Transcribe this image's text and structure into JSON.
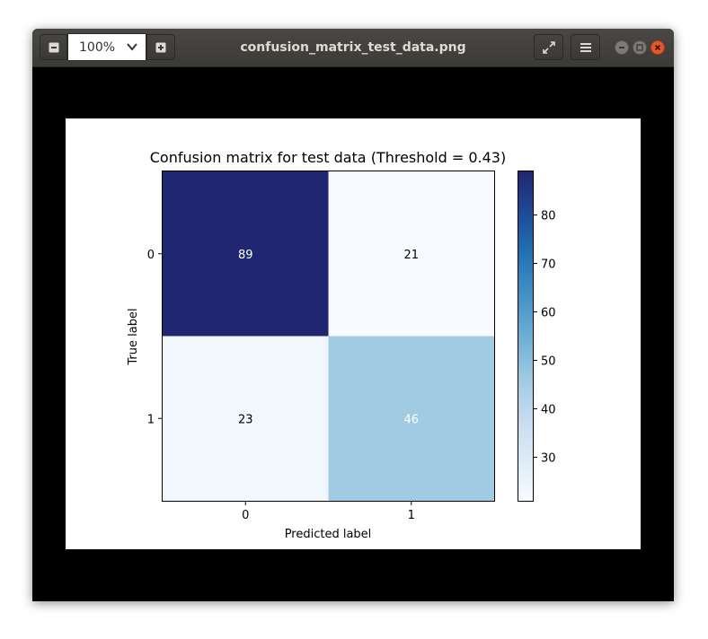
{
  "window": {
    "title": "confusion_matrix_test_data.png",
    "zoom_value": "100%"
  },
  "icons": {
    "zoom_out": "minus-icon",
    "zoom_in": "plus-icon",
    "dropdown": "chevron-down-icon",
    "fullscreen": "fullscreen-icon",
    "menu": "hamburger-menu-icon",
    "minimize": "minimize-icon",
    "maximize": "maximize-icon",
    "close": "close-icon"
  },
  "chart_data": {
    "type": "heatmap",
    "title": "Confusion matrix for test data (Threshold = 0.43)",
    "xlabel": "Predicted label",
    "ylabel": "True label",
    "x_categories": [
      "0",
      "1"
    ],
    "y_categories": [
      "0",
      "1"
    ],
    "values": [
      [
        89,
        21
      ],
      [
        23,
        46
      ]
    ],
    "colormap": "Blues",
    "colorbar": {
      "ticks": [
        "30",
        "40",
        "50",
        "60",
        "70",
        "80"
      ],
      "range": [
        21,
        89
      ]
    },
    "grid": false,
    "colors": {
      "low": "#f7fbff",
      "high": "#212671",
      "text_dark": "#000000",
      "text_light": "#ffffff"
    }
  }
}
